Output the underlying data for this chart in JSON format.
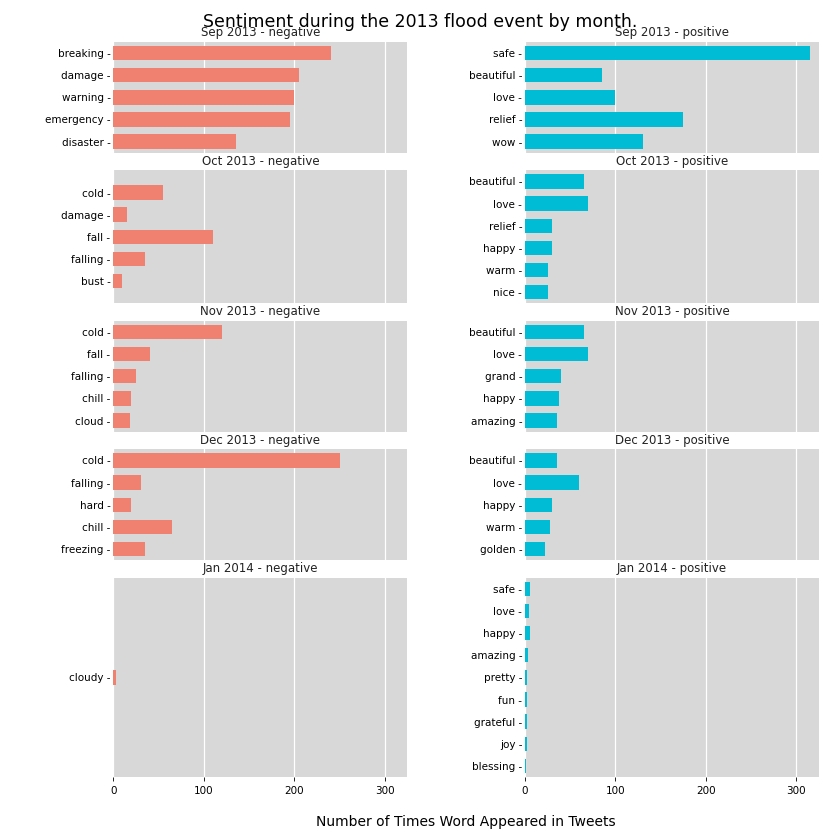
{
  "title": "Sentiment during the 2013 flood event by month.",
  "xlabel": "Number of Times Word Appeared in Tweets",
  "neg_color": "#F08070",
  "pos_color": "#00BCD4",
  "bg_color": "#D8D8D8",
  "panels": [
    {
      "title": "Sep 2013 - negative",
      "sentiment": "negative",
      "words": [
        "breaking",
        "damage",
        "warning",
        "emergency",
        "disaster"
      ],
      "values": [
        240,
        205,
        200,
        195,
        135
      ]
    },
    {
      "title": "Sep 2013 - positive",
      "sentiment": "positive",
      "words": [
        "safe",
        "beautiful",
        "love",
        "relief",
        "wow"
      ],
      "values": [
        315,
        85,
        100,
        175,
        130
      ]
    },
    {
      "title": "Oct 2013 - negative",
      "sentiment": "negative",
      "words": [
        "cold",
        "damage",
        "fall",
        "falling",
        "bust"
      ],
      "values": [
        55,
        15,
        110,
        35,
        10
      ]
    },
    {
      "title": "Oct 2013 - positive",
      "sentiment": "positive",
      "words": [
        "beautiful",
        "love",
        "relief",
        "happy",
        "warm",
        "nice"
      ],
      "values": [
        65,
        70,
        30,
        30,
        25,
        25
      ]
    },
    {
      "title": "Nov 2013 - negative",
      "sentiment": "negative",
      "words": [
        "cold",
        "fall",
        "falling",
        "chill",
        "cloud"
      ],
      "values": [
        120,
        40,
        25,
        20,
        18
      ]
    },
    {
      "title": "Nov 2013 - positive",
      "sentiment": "positive",
      "words": [
        "beautiful",
        "love",
        "grand",
        "happy",
        "amazing"
      ],
      "values": [
        65,
        70,
        40,
        38,
        35
      ]
    },
    {
      "title": "Dec 2013 - negative",
      "sentiment": "negative",
      "words": [
        "cold",
        "falling",
        "hard",
        "chill",
        "freezing"
      ],
      "values": [
        250,
        30,
        20,
        65,
        35
      ]
    },
    {
      "title": "Dec 2013 - positive",
      "sentiment": "positive",
      "words": [
        "beautiful",
        "love",
        "happy",
        "warm",
        "golden"
      ],
      "values": [
        35,
        60,
        30,
        28,
        22
      ]
    },
    {
      "title": "Jan 2014 - negative",
      "sentiment": "negative",
      "words": [
        "cloudy"
      ],
      "values": [
        3
      ]
    },
    {
      "title": "Jan 2014 - positive",
      "sentiment": "positive",
      "words": [
        "safe",
        "love",
        "happy",
        "amazing",
        "pretty",
        "fun",
        "grateful",
        "joy",
        "blessing"
      ],
      "values": [
        5,
        4,
        5,
        3,
        2,
        2,
        2,
        2,
        1
      ]
    }
  ],
  "xlim": [
    0,
    325
  ],
  "xticks": [
    0,
    100,
    200,
    300
  ]
}
